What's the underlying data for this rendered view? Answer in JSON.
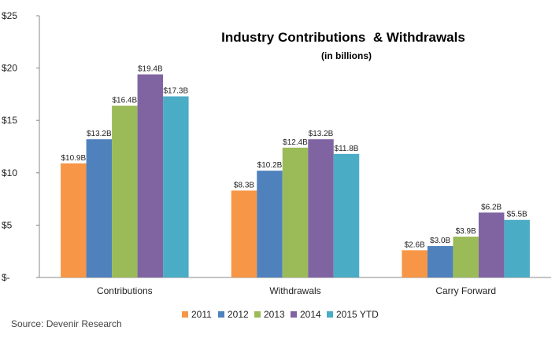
{
  "chart_data": {
    "type": "bar",
    "title": "Industry Contributions  & Withdrawals",
    "subtitle": "(in billions)",
    "categories": [
      "Contributions",
      "Withdrawals",
      "Carry Forward"
    ],
    "series": [
      {
        "name": "2011",
        "color": "#F79646",
        "values": [
          10.9,
          8.3,
          2.6
        ],
        "labels": [
          "$10.9B",
          "$8.3B",
          "$2.6B"
        ]
      },
      {
        "name": "2012",
        "color": "#4F81BD",
        "values": [
          13.2,
          10.2,
          3.0
        ],
        "labels": [
          "$13.2B",
          "$10.2B",
          "$3.0B"
        ]
      },
      {
        "name": "2013",
        "color": "#9BBB59",
        "values": [
          16.4,
          12.4,
          3.9
        ],
        "labels": [
          "$16.4B",
          "$12.4B",
          "$3.9B"
        ]
      },
      {
        "name": "2014",
        "color": "#8064A2",
        "values": [
          19.4,
          13.2,
          6.2
        ],
        "labels": [
          "$19.4B",
          "$13.2B",
          "$6.2B"
        ]
      },
      {
        "name": "2015 YTD",
        "color": "#4BACC6",
        "values": [
          17.3,
          11.8,
          5.5
        ],
        "labels": [
          "$17.3B",
          "$11.8B",
          "$5.5B"
        ]
      }
    ],
    "y_ticks": [
      0,
      5,
      10,
      15,
      20,
      25
    ],
    "y_tick_labels": [
      "$-",
      "$5",
      "$10",
      "$15",
      "$20",
      "$25"
    ],
    "ylim": [
      0,
      25
    ],
    "grid": false,
    "legend_position": "bottom"
  },
  "source": "Source: Devenir Research"
}
